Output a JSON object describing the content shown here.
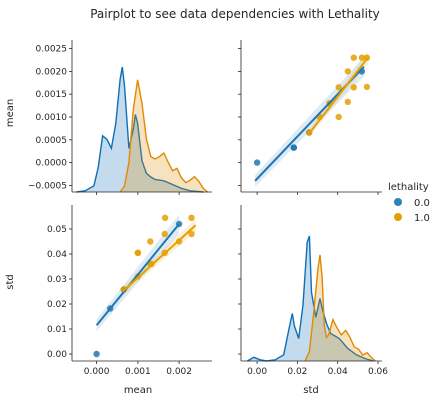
{
  "title": "Pairplot to see data dependencies with Lethality",
  "colors": {
    "hue_0": "#1f77b4",
    "hue_1": "#e69f00",
    "kde_0": "#0f6fb8",
    "kde_1": "#e08a00"
  },
  "legend": {
    "title": "lethality",
    "placement": "right",
    "entries": [
      {
        "label": "0.0",
        "color": "#2b83ba"
      },
      {
        "label": "1.0",
        "color": "#e69f00"
      }
    ]
  },
  "chart_data": [
    {
      "panel": "mean-vs-mean",
      "type": "area",
      "ylabel": "mean",
      "xlim": [
        -0.0005,
        0.0027
      ],
      "yticks": [
        -0.0005,
        0.0,
        0.0005,
        0.001,
        0.0015,
        0.002,
        0.0025
      ],
      "ytick_labels": [
        "−0.0005",
        "0.0000",
        "0.0005",
        "0.0010",
        "0.0015",
        "0.0020",
        "0.0025"
      ],
      "series": [
        {
          "x": [
            -0.0004,
            -0.0002,
            0.0,
            0.0001,
            0.0002,
            0.0003,
            0.0004,
            0.0005,
            0.0006,
            0.00065,
            0.0007,
            0.0008,
            0.0009,
            0.00095,
            0.001,
            0.0011,
            0.0012,
            0.0013,
            0.0014,
            0.0016,
            0.0018,
            0.002,
            0.0022,
            0.0025
          ],
          "y": [
            0.0,
            0.01,
            0.05,
            0.2,
            0.45,
            0.42,
            0.35,
            0.55,
            0.9,
            1.0,
            0.85,
            0.35,
            0.5,
            0.62,
            0.55,
            0.25,
            0.15,
            0.12,
            0.1,
            0.09,
            0.06,
            0.03,
            0.01,
            0.0
          ]
        },
        {
          "x": [
            0.0006,
            0.0007,
            0.0008,
            0.0009,
            0.001,
            0.0011,
            0.0012,
            0.0013,
            0.0014,
            0.0015,
            0.0016,
            0.0017,
            0.0018,
            0.0019,
            0.002,
            0.0021,
            0.0022,
            0.0023,
            0.0024,
            0.0025,
            0.0026
          ],
          "y": [
            0.0,
            0.05,
            0.25,
            0.7,
            0.95,
            0.75,
            0.45,
            0.3,
            0.28,
            0.3,
            0.33,
            0.25,
            0.18,
            0.2,
            0.12,
            0.08,
            0.1,
            0.13,
            0.09,
            0.03,
            0.0
          ]
        }
      ]
    },
    {
      "panel": "mean-vs-std",
      "type": "scatter",
      "xlim": [
        -0.006,
        0.06
      ],
      "ylim": [
        -0.0006,
        0.0026
      ],
      "series": [
        {
          "x": [
            0.0,
            0.0182,
            0.0182,
            0.052,
            0.0258
          ],
          "y": [
            0.0,
            0.00033,
            0.00033,
            0.002,
            0.00066
          ],
          "fit": [
            [
              -0.001,
              -0.0004
            ],
            [
              0.053,
              0.0021
            ]
          ]
        },
        {
          "x": [
            0.0258,
            0.031,
            0.036,
            0.036,
            0.0405,
            0.0405,
            0.045,
            0.045,
            0.048,
            0.048,
            0.0545,
            0.0545,
            0.052
          ],
          "y": [
            0.00066,
            0.001,
            0.0013,
            0.0013,
            0.001,
            0.00165,
            0.00133,
            0.002,
            0.00165,
            0.0023,
            0.00166,
            0.0023,
            0.0023
          ],
          "fit": [
            [
              0.0255,
              0.00062
            ],
            [
              0.055,
              0.0023
            ]
          ]
        }
      ]
    },
    {
      "panel": "std-vs-mean",
      "type": "scatter",
      "ylabel": "std",
      "xlabel": "mean",
      "xticks": [
        0.0,
        0.001,
        0.002
      ],
      "xtick_labels": [
        "0.000",
        "0.001",
        "0.002"
      ],
      "yticks": [
        0.0,
        0.01,
        0.02,
        0.03,
        0.04,
        0.05
      ],
      "ytick_labels": [
        "0.00",
        "0.01",
        "0.02",
        "0.03",
        "0.04",
        "0.05"
      ],
      "xlim": [
        -0.0005,
        0.0027
      ],
      "ylim": [
        -0.002,
        0.058
      ],
      "series": [
        {
          "x": [
            0.0,
            0.00033,
            0.00066,
            0.002
          ],
          "y": [
            0.0,
            0.0182,
            0.0258,
            0.052
          ],
          "fit": [
            [
              0.0,
              0.0115
            ],
            [
              0.002,
              0.052
            ]
          ]
        },
        {
          "x": [
            0.00066,
            0.001,
            0.001,
            0.0013,
            0.0013,
            0.00165,
            0.00165,
            0.002,
            0.0023,
            0.0023,
            0.00166,
            0.00133,
            0.001
          ],
          "y": [
            0.0258,
            0.031,
            0.0405,
            0.036,
            0.045,
            0.0405,
            0.048,
            0.045,
            0.0545,
            0.048,
            0.0545,
            0.036,
            0.0405
          ],
          "fit": [
            [
              0.00063,
              0.025
            ],
            [
              0.0024,
              0.0515
            ]
          ]
        }
      ]
    },
    {
      "panel": "std-vs-std",
      "type": "area",
      "xlabel": "std",
      "xticks": [
        0.0,
        0.02,
        0.04,
        0.06
      ],
      "xtick_labels": [
        "0.00",
        "0.02",
        "0.04",
        "0.06"
      ],
      "xlim": [
        -0.006,
        0.06
      ],
      "series": [
        {
          "x": [
            -0.003,
            0.0,
            0.003,
            0.006,
            0.01,
            0.014,
            0.017,
            0.018,
            0.019,
            0.021,
            0.023,
            0.025,
            0.026,
            0.027,
            0.029,
            0.031,
            0.032,
            0.034,
            0.036,
            0.04,
            0.044,
            0.048,
            0.052,
            0.056
          ],
          "y": [
            0.0,
            0.03,
            0.01,
            0.0,
            0.01,
            0.05,
            0.3,
            0.38,
            0.28,
            0.18,
            0.45,
            0.95,
            1.0,
            0.55,
            0.35,
            0.5,
            0.42,
            0.3,
            0.22,
            0.18,
            0.1,
            0.05,
            0.02,
            0.0
          ]
        },
        {
          "x": [
            0.024,
            0.026,
            0.028,
            0.03,
            0.031,
            0.032,
            0.033,
            0.034,
            0.035,
            0.037,
            0.039,
            0.041,
            0.043,
            0.045,
            0.047,
            0.049,
            0.051,
            0.053,
            0.055,
            0.057
          ],
          "y": [
            0.0,
            0.08,
            0.4,
            0.78,
            0.9,
            0.7,
            0.3,
            0.2,
            0.22,
            0.35,
            0.28,
            0.22,
            0.26,
            0.2,
            0.12,
            0.1,
            0.05,
            0.07,
            0.03,
            0.0
          ]
        }
      ]
    }
  ]
}
